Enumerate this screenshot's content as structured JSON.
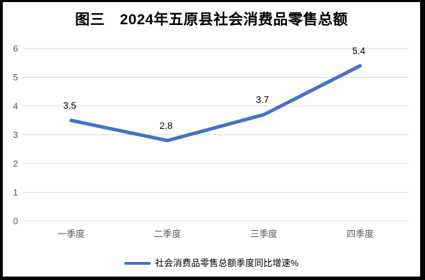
{
  "title": "图三　2024年五原县社会消费品零售总额",
  "legend": {
    "label": "社会消费品零售总额季度同比增速%"
  },
  "colors": {
    "line": "#4472C4",
    "gridline": "#D9D9D9",
    "axis_label": "#595959",
    "data_label": "#000000",
    "title_text": "#000000",
    "frame_border": "#000000",
    "background": "#FFFFFF"
  },
  "chart_data": {
    "type": "line",
    "title": "图三　2024年五原县社会消费品零售总额",
    "categories": [
      "一季度",
      "二季度",
      "三季度",
      "四季度"
    ],
    "series": [
      {
        "name": "社会消费品零售总额季度同比增速%",
        "values": [
          3.5,
          2.8,
          3.7,
          5.4
        ],
        "color": "#4472C4"
      }
    ],
    "data_labels": [
      "3.5",
      "2.8",
      "3.7",
      "5.4"
    ],
    "xlabel": "",
    "ylabel": "",
    "ylim": [
      0,
      6
    ],
    "yticks": [
      0,
      1,
      2,
      3,
      4,
      5,
      6
    ],
    "grid": true,
    "legend_position": "bottom"
  }
}
